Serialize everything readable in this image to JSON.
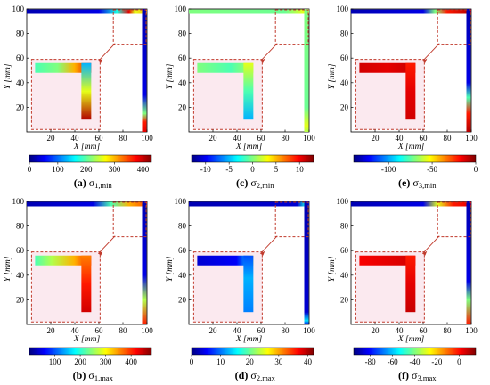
{
  "figure": {
    "description": "Six stress contour plots of an L-shaped frame with zoomed insets and colorbars",
    "colormap": [
      "#00007f",
      "#0000ff",
      "#007fff",
      "#00ffff",
      "#7fff7f",
      "#ffff00",
      "#ff7f00",
      "#ff0000",
      "#7f0000"
    ],
    "inset_frame_color": "#c0392b"
  },
  "chart_data": [
    {
      "type": "heatmap",
      "label": "(a)",
      "symbol": "σ",
      "sub": "1,min",
      "xlabel": "X [mm]",
      "ylabel": "Y [mm]",
      "xlim": [
        0,
        100
      ],
      "ylim": [
        0,
        100
      ],
      "xticks": [
        20,
        40,
        60,
        80,
        100
      ],
      "yticks": [
        20,
        40,
        60,
        80,
        100
      ],
      "colorbar": {
        "min": 0,
        "max": 430,
        "ticks": [
          0,
          100,
          200,
          300,
          400
        ]
      },
      "top_beam_levels": [
        [
          0,
          0.05
        ],
        [
          0.6,
          0.1
        ],
        [
          0.75,
          0.4
        ],
        [
          0.85,
          0.9
        ],
        [
          0.9,
          0.6
        ],
        [
          1,
          0.7
        ]
      ],
      "right_beam_levels": [
        [
          0,
          0.05
        ],
        [
          0.7,
          0.1
        ],
        [
          0.85,
          0.5
        ],
        [
          0.92,
          0.85
        ],
        [
          1,
          0.9
        ]
      ],
      "inset": {
        "horizontal": [
          [
            0,
            0.45
          ],
          [
            0.4,
            0.5
          ],
          [
            0.7,
            0.7
          ],
          [
            1,
            0.9
          ]
        ],
        "vertical": [
          [
            0,
            0.3
          ],
          [
            0.5,
            0.6
          ],
          [
            1,
            0.95
          ]
        ]
      }
    },
    {
      "type": "heatmap",
      "label": "(c)",
      "symbol": "σ",
      "sub": "2,min",
      "xlabel": "X [mm]",
      "ylabel": "Y [mm]",
      "xlim": [
        0,
        100
      ],
      "ylim": [
        0,
        100
      ],
      "xticks": [
        20,
        40,
        60,
        80,
        100
      ],
      "yticks": [
        20,
        40,
        60,
        80,
        100
      ],
      "colorbar": {
        "min": -13,
        "max": 13,
        "ticks": [
          -10,
          -5,
          0,
          5,
          10
        ]
      },
      "top_beam_levels": [
        [
          0,
          0.5
        ],
        [
          0.8,
          0.48
        ],
        [
          0.95,
          0.6
        ],
        [
          1,
          0.55
        ]
      ],
      "right_beam_levels": [
        [
          0,
          0.5
        ],
        [
          0.8,
          0.48
        ],
        [
          0.95,
          0.6
        ],
        [
          1,
          0.55
        ]
      ],
      "inset": {
        "horizontal": [
          [
            0,
            0.5
          ],
          [
            0.6,
            0.45
          ],
          [
            1,
            0.55
          ]
        ],
        "vertical": [
          [
            0,
            0.6
          ],
          [
            0.5,
            0.45
          ],
          [
            1,
            0.3
          ]
        ]
      }
    },
    {
      "type": "heatmap",
      "label": "(e)",
      "symbol": "σ",
      "sub": "3,min",
      "xlabel": "X [mm]",
      "ylabel": "Y [mm]",
      "xlim": [
        0,
        100
      ],
      "ylim": [
        0,
        100
      ],
      "xticks": [
        20,
        40,
        60,
        80,
        100
      ],
      "yticks": [
        20,
        40,
        60,
        80,
        100
      ],
      "colorbar": {
        "min": -140,
        "max": 0,
        "ticks": [
          -100,
          -50,
          0
        ]
      },
      "top_beam_levels": [
        [
          0,
          0.05
        ],
        [
          0.6,
          0.1
        ],
        [
          0.7,
          0.5
        ],
        [
          0.8,
          0.85
        ],
        [
          1,
          0.95
        ]
      ],
      "right_beam_levels": [
        [
          0,
          0.05
        ],
        [
          0.6,
          0.1
        ],
        [
          0.72,
          0.45
        ],
        [
          0.85,
          0.85
        ],
        [
          1,
          0.95
        ]
      ],
      "inset": {
        "horizontal": [
          [
            0,
            0.92
          ],
          [
            0.5,
            0.9
          ],
          [
            1,
            0.93
          ]
        ],
        "vertical": [
          [
            0,
            0.85
          ],
          [
            0.5,
            0.9
          ],
          [
            1,
            0.92
          ]
        ]
      }
    },
    {
      "type": "heatmap",
      "label": "(b)",
      "symbol": "σ",
      "sub": "1,max",
      "xlabel": "X [mm]",
      "ylabel": "Y [mm]",
      "xlim": [
        0,
        100
      ],
      "ylim": [
        0,
        100
      ],
      "xticks": [
        20,
        40,
        60,
        80,
        100
      ],
      "yticks": [
        20,
        40,
        60,
        80,
        100
      ],
      "colorbar": {
        "min": 0,
        "max": 480,
        "ticks": [
          100,
          200,
          300,
          400
        ]
      },
      "top_beam_levels": [
        [
          0,
          0.05
        ],
        [
          0.55,
          0.1
        ],
        [
          0.7,
          0.45
        ],
        [
          0.85,
          0.7
        ],
        [
          1,
          0.8
        ]
      ],
      "right_beam_levels": [
        [
          0,
          0.05
        ],
        [
          0.6,
          0.1
        ],
        [
          0.8,
          0.55
        ],
        [
          1,
          0.85
        ]
      ],
      "inset": {
        "horizontal": [
          [
            0,
            0.45
          ],
          [
            0.3,
            0.55
          ],
          [
            0.7,
            0.7
          ],
          [
            1,
            0.85
          ]
        ],
        "vertical": [
          [
            0,
            0.75
          ],
          [
            0.5,
            0.85
          ],
          [
            1,
            0.92
          ]
        ]
      }
    },
    {
      "type": "heatmap",
      "label": "(d)",
      "symbol": "σ",
      "sub": "2,max",
      "xlabel": "X [mm]",
      "ylabel": "Y [mm]",
      "xlim": [
        0,
        100
      ],
      "ylim": [
        0,
        100
      ],
      "xticks": [
        20,
        40,
        60,
        80,
        100
      ],
      "yticks": [
        20,
        40,
        60,
        80,
        100
      ],
      "colorbar": {
        "min": 0,
        "max": 42,
        "ticks": [
          0,
          10,
          20,
          30,
          40
        ]
      },
      "top_beam_levels": [
        [
          0,
          0.05
        ],
        [
          0.9,
          0.08
        ],
        [
          0.97,
          0.4
        ],
        [
          1,
          0.1
        ]
      ],
      "right_beam_levels": [
        [
          0,
          0.05
        ],
        [
          0.9,
          0.08
        ],
        [
          0.97,
          0.35
        ],
        [
          1,
          0.1
        ]
      ],
      "inset": {
        "horizontal": [
          [
            0,
            0.08
          ],
          [
            0.7,
            0.12
          ],
          [
            0.9,
            0.3
          ],
          [
            1,
            0.6
          ]
        ],
        "vertical": [
          [
            0,
            0.2
          ],
          [
            0.4,
            0.3
          ],
          [
            1,
            0.25
          ]
        ]
      }
    },
    {
      "type": "heatmap",
      "label": "(f)",
      "symbol": "σ",
      "sub": "3,max",
      "xlabel": "X [mm]",
      "ylabel": "Y [mm]",
      "xlim": [
        0,
        100
      ],
      "ylim": [
        0,
        100
      ],
      "xticks": [
        20,
        40,
        60,
        80,
        100
      ],
      "yticks": [
        20,
        40,
        60,
        80,
        100
      ],
      "colorbar": {
        "min": -95,
        "max": 15,
        "ticks": [
          -80,
          -60,
          -40,
          -20,
          0
        ]
      },
      "top_beam_levels": [
        [
          0,
          0.05
        ],
        [
          0.6,
          0.1
        ],
        [
          0.72,
          0.6
        ],
        [
          0.85,
          0.85
        ],
        [
          1,
          0.9
        ]
      ],
      "right_beam_levels": [
        [
          0,
          0.05
        ],
        [
          0.65,
          0.1
        ],
        [
          0.8,
          0.5
        ],
        [
          1,
          0.85
        ]
      ],
      "inset": {
        "horizontal": [
          [
            0,
            0.88
          ],
          [
            0.5,
            0.9
          ],
          [
            1,
            0.92
          ]
        ],
        "vertical": [
          [
            0,
            0.85
          ],
          [
            0.5,
            0.9
          ],
          [
            1,
            0.93
          ]
        ]
      }
    }
  ]
}
